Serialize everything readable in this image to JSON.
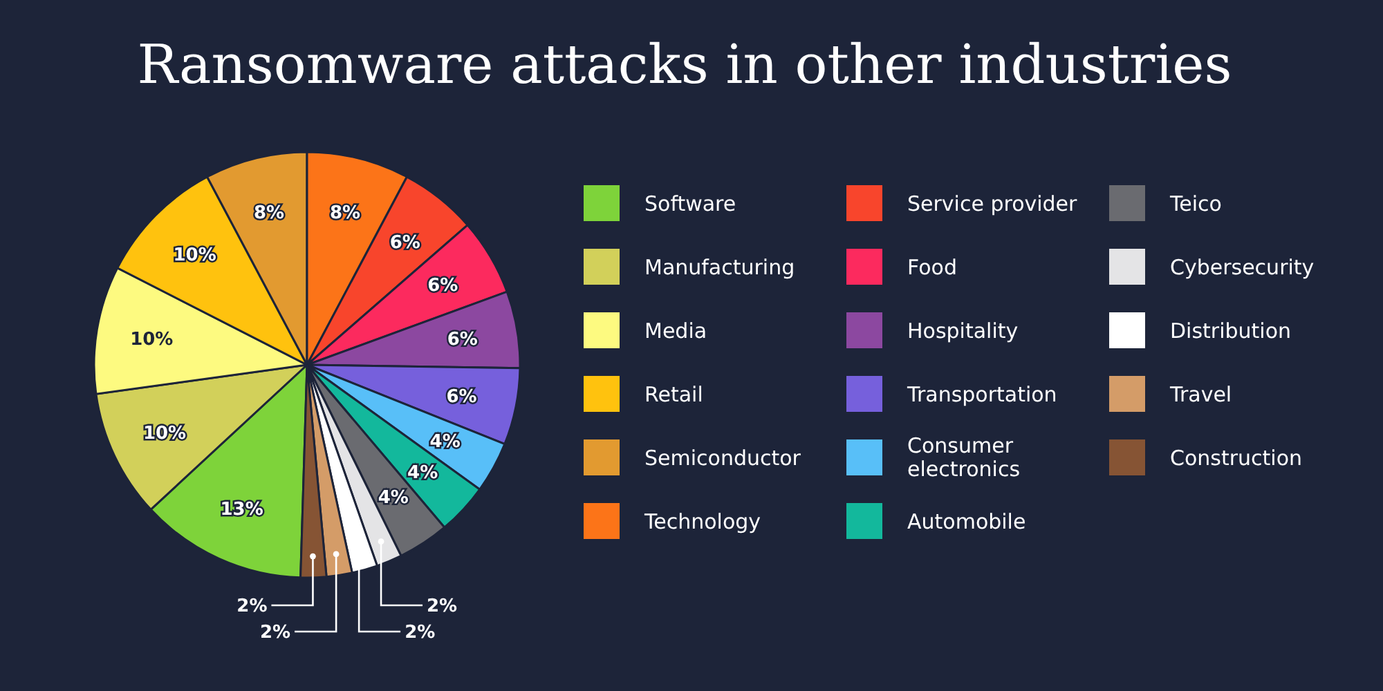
{
  "chart_data": {
    "type": "pie",
    "title": "Ransomware attacks in other industries",
    "categories": [
      "Software",
      "Manufacturing",
      "Media",
      "Retail",
      "Semiconductor",
      "Technology",
      "Service provider",
      "Food",
      "Hospitality",
      "Transportation",
      "Consumer electronics",
      "Automobile",
      "Teico",
      "Cybersecurity",
      "Distribution",
      "Travel",
      "Construction"
    ],
    "values": [
      13,
      10,
      10,
      10,
      8,
      8,
      6,
      6,
      6,
      6,
      4,
      4,
      4,
      2,
      2,
      2,
      2
    ],
    "value_labels": [
      "13%",
      "10%",
      "10%",
      "10%",
      "8%",
      "8%",
      "6%",
      "6%",
      "6%",
      "6%",
      "4%",
      "4%",
      "4%",
      "2%",
      "2%",
      "2%",
      "2%"
    ],
    "colors": [
      "#7ed33a",
      "#d2d05a",
      "#fdfa80",
      "#ffc20e",
      "#e29a30",
      "#fc7418",
      "#f8452c",
      "#fc2a5e",
      "#8c48a0",
      "#7660dc",
      "#58bff8",
      "#13b89c",
      "#6a6b70",
      "#e4e4e6",
      "#ffffff",
      "#d49c68",
      "#865434"
    ],
    "legend": "right"
  }
}
